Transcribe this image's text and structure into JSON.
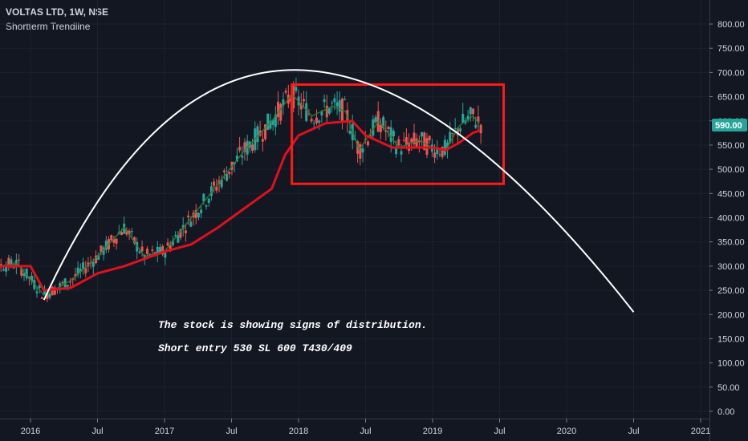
{
  "header": {
    "title": "VOLTAS LTD, 1W, NSE",
    "subtitle": "Shortterm Trendline"
  },
  "annotations": {
    "line1": "The stock is showing signs of distribution.",
    "line2": "Short entry 530 SL 600 T430/409"
  },
  "current_price_label": "590.00",
  "colors": {
    "background": "#131722",
    "up": "#26a69a",
    "down": "#ef5350",
    "ma_line": "#e0101f",
    "short_line": "#2e7d32",
    "box": "#ff1a1a",
    "arc": "#ffffff",
    "price_tag": "#26a69a"
  },
  "chart_data": {
    "type": "line",
    "ylim": [
      -15,
      832
    ],
    "y_ticks": [
      "800.00",
      "750.00",
      "700.00",
      "650.00",
      "600.00",
      "550.00",
      "500.00",
      "450.00",
      "400.00",
      "350.00",
      "300.00",
      "250.00",
      "200.00",
      "150.00",
      "100.00",
      "50.00",
      "0.00"
    ],
    "x_ticks": [
      "2016",
      "Jul",
      "2017",
      "Jul",
      "2018",
      "Jul",
      "2019",
      "Jul",
      "2020",
      "Jul",
      "2021"
    ],
    "series": [
      {
        "values": [
          [
            2015.6,
            290
          ],
          [
            2015.8,
            300
          ],
          [
            2016.0,
            300
          ],
          [
            2016.1,
            250
          ],
          [
            2016.3,
            255
          ],
          [
            2016.5,
            285
          ],
          [
            2016.7,
            300
          ],
          [
            2016.9,
            320
          ],
          [
            2017.0,
            330
          ],
          [
            2017.2,
            345
          ],
          [
            2017.4,
            380
          ],
          [
            2017.6,
            420
          ],
          [
            2017.8,
            460
          ],
          [
            2017.9,
            530
          ],
          [
            2018.0,
            570
          ],
          [
            2018.2,
            595
          ],
          [
            2018.4,
            600
          ],
          [
            2018.5,
            570
          ],
          [
            2018.7,
            545
          ],
          [
            2018.8,
            545
          ],
          [
            2019.0,
            545
          ],
          [
            2019.1,
            540
          ],
          [
            2019.2,
            555
          ],
          [
            2019.3,
            575
          ],
          [
            2019.35,
            580
          ]
        ]
      },
      {
        "values": [
          [
            2015.6,
            295
          ],
          [
            2015.9,
            305
          ],
          [
            2016.1,
            240
          ],
          [
            2016.3,
            270
          ],
          [
            2016.5,
            320
          ],
          [
            2016.7,
            380
          ],
          [
            2016.85,
            320
          ],
          [
            2017.0,
            330
          ],
          [
            2017.2,
            400
          ],
          [
            2017.4,
            470
          ],
          [
            2017.6,
            540
          ],
          [
            2017.8,
            600
          ],
          [
            2017.95,
            655
          ],
          [
            2018.1,
            610
          ],
          [
            2018.25,
            630
          ],
          [
            2018.35,
            620
          ],
          [
            2018.45,
            540
          ],
          [
            2018.6,
            600
          ],
          [
            2018.75,
            545
          ],
          [
            2018.9,
            560
          ],
          [
            2019.0,
            545
          ],
          [
            2019.1,
            540
          ],
          [
            2019.2,
            590
          ],
          [
            2019.3,
            610
          ],
          [
            2019.35,
            595
          ]
        ]
      }
    ],
    "overlays": {
      "rectangle": {
        "x": [
          2017.95,
          2019.53
        ],
        "y": [
          470,
          675
        ]
      },
      "arc": {
        "start": [
          2016.1,
          230
        ],
        "peak": [
          2018.0,
          705
        ],
        "end": [
          2020.5,
          205
        ]
      }
    }
  }
}
